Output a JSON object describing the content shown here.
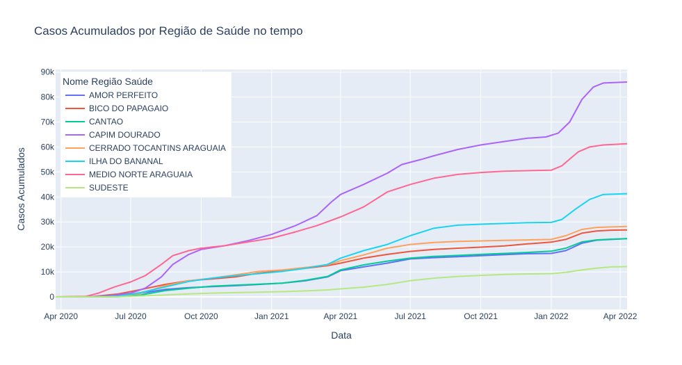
{
  "chart_data": {
    "type": "line",
    "title": "Casos Acumulados por Região de Saúde no tempo",
    "xlabel": "Data",
    "ylabel": "Casos Acumulados",
    "legend_title": "Nome Região Saúde",
    "legend_position": "top-left",
    "grid": true,
    "xlim": [
      "2020-03-25",
      "2022-04-10"
    ],
    "ylim": [
      -5000,
      91000
    ],
    "x_ticks": [
      {
        "date": "2020-04-01",
        "label": "Apr 2020"
      },
      {
        "date": "2020-07-01",
        "label": "Jul 2020"
      },
      {
        "date": "2020-10-01",
        "label": "Oct 2020"
      },
      {
        "date": "2021-01-01",
        "label": "Jan 2021"
      },
      {
        "date": "2021-04-01",
        "label": "Apr 2021"
      },
      {
        "date": "2021-07-01",
        "label": "Jul 2021"
      },
      {
        "date": "2021-10-01",
        "label": "Oct 2021"
      },
      {
        "date": "2022-01-01",
        "label": "Jan 2022"
      },
      {
        "date": "2022-04-01",
        "label": "Apr 2022"
      }
    ],
    "y_ticks": [
      {
        "value": 0,
        "label": "0"
      },
      {
        "value": 10000,
        "label": "10k"
      },
      {
        "value": 20000,
        "label": "20k"
      },
      {
        "value": 30000,
        "label": "30k"
      },
      {
        "value": 40000,
        "label": "40k"
      },
      {
        "value": 50000,
        "label": "50k"
      },
      {
        "value": 60000,
        "label": "60k"
      },
      {
        "value": 70000,
        "label": "70k"
      },
      {
        "value": 80000,
        "label": "80k"
      },
      {
        "value": 90000,
        "label": "90k"
      }
    ],
    "series": [
      {
        "name": "AMOR PERFEITO",
        "color": "#636efa",
        "points": [
          [
            "2020-03-25",
            0
          ],
          [
            "2020-05-15",
            100
          ],
          [
            "2020-06-15",
            500
          ],
          [
            "2020-07-15",
            1500
          ],
          [
            "2020-08-15",
            3000
          ],
          [
            "2020-09-15",
            3700
          ],
          [
            "2020-10-15",
            4100
          ],
          [
            "2020-11-15",
            4500
          ],
          [
            "2020-12-15",
            5000
          ],
          [
            "2021-01-15",
            5500
          ],
          [
            "2021-02-15",
            6500
          ],
          [
            "2021-03-15",
            8000
          ],
          [
            "2021-04-01",
            10500
          ],
          [
            "2021-05-01",
            12000
          ],
          [
            "2021-06-01",
            13500
          ],
          [
            "2021-07-01",
            15200
          ],
          [
            "2021-08-01",
            15700
          ],
          [
            "2021-09-01",
            16100
          ],
          [
            "2021-10-01",
            16500
          ],
          [
            "2021-11-01",
            16900
          ],
          [
            "2021-12-01",
            17300
          ],
          [
            "2022-01-01",
            17400
          ],
          [
            "2022-01-20",
            18500
          ],
          [
            "2022-02-10",
            21500
          ],
          [
            "2022-03-01",
            22700
          ],
          [
            "2022-03-20",
            23000
          ],
          [
            "2022-04-10",
            23300
          ]
        ]
      },
      {
        "name": "BICO DO PAPAGAIO",
        "color": "#ef553b",
        "points": [
          [
            "2020-03-25",
            0
          ],
          [
            "2020-05-15",
            200
          ],
          [
            "2020-06-15",
            1200
          ],
          [
            "2020-07-15",
            3000
          ],
          [
            "2020-08-15",
            5000
          ],
          [
            "2020-09-15",
            6500
          ],
          [
            "2020-10-15",
            7200
          ],
          [
            "2020-11-15",
            8000
          ],
          [
            "2020-12-15",
            9500
          ],
          [
            "2021-01-15",
            10500
          ],
          [
            "2021-02-15",
            11500
          ],
          [
            "2021-03-15",
            12500
          ],
          [
            "2021-04-01",
            13500
          ],
          [
            "2021-05-01",
            15500
          ],
          [
            "2021-06-01",
            17000
          ],
          [
            "2021-07-01",
            18200
          ],
          [
            "2021-08-01",
            19000
          ],
          [
            "2021-09-01",
            19500
          ],
          [
            "2021-10-01",
            19900
          ],
          [
            "2021-11-01",
            20400
          ],
          [
            "2021-12-01",
            21200
          ],
          [
            "2022-01-01",
            21900
          ],
          [
            "2022-01-20",
            23000
          ],
          [
            "2022-02-10",
            25500
          ],
          [
            "2022-03-01",
            26400
          ],
          [
            "2022-03-20",
            26700
          ],
          [
            "2022-04-10",
            26800
          ]
        ]
      },
      {
        "name": "CANTAO",
        "color": "#00cc96",
        "points": [
          [
            "2020-03-25",
            0
          ],
          [
            "2020-05-15",
            0
          ],
          [
            "2020-06-15",
            100
          ],
          [
            "2020-07-15",
            800
          ],
          [
            "2020-08-15",
            2500
          ],
          [
            "2020-09-15",
            3500
          ],
          [
            "2020-10-15",
            4300
          ],
          [
            "2020-11-15",
            4700
          ],
          [
            "2020-12-15",
            5100
          ],
          [
            "2021-01-15",
            5500
          ],
          [
            "2021-02-15",
            6700
          ],
          [
            "2021-03-15",
            8200
          ],
          [
            "2021-04-01",
            10800
          ],
          [
            "2021-05-01",
            12800
          ],
          [
            "2021-06-01",
            14300
          ],
          [
            "2021-07-01",
            15500
          ],
          [
            "2021-08-01",
            16200
          ],
          [
            "2021-09-01",
            16600
          ],
          [
            "2021-10-01",
            17000
          ],
          [
            "2021-11-01",
            17400
          ],
          [
            "2021-12-01",
            17800
          ],
          [
            "2022-01-01",
            18300
          ],
          [
            "2022-01-20",
            19500
          ],
          [
            "2022-02-10",
            22000
          ],
          [
            "2022-03-01",
            22800
          ],
          [
            "2022-03-20",
            23100
          ],
          [
            "2022-04-10",
            23300
          ]
        ]
      },
      {
        "name": "CAPIM DOURADO",
        "color": "#ab63fa",
        "points": [
          [
            "2020-03-25",
            0
          ],
          [
            "2020-05-01",
            0
          ],
          [
            "2020-06-01",
            400
          ],
          [
            "2020-07-01",
            1500
          ],
          [
            "2020-07-20",
            3500
          ],
          [
            "2020-08-10",
            8000
          ],
          [
            "2020-08-25",
            13000
          ],
          [
            "2020-09-15",
            17000
          ],
          [
            "2020-10-01",
            19000
          ],
          [
            "2020-11-01",
            20500
          ],
          [
            "2020-12-01",
            22500
          ],
          [
            "2021-01-01",
            25000
          ],
          [
            "2021-02-01",
            28500
          ],
          [
            "2021-03-01",
            32500
          ],
          [
            "2021-03-20",
            38000
          ],
          [
            "2021-04-01",
            41000
          ],
          [
            "2021-05-01",
            45000
          ],
          [
            "2021-06-01",
            49500
          ],
          [
            "2021-06-20",
            53000
          ],
          [
            "2021-07-15",
            55000
          ],
          [
            "2021-08-01",
            56500
          ],
          [
            "2021-09-01",
            59000
          ],
          [
            "2021-10-01",
            60800
          ],
          [
            "2021-11-01",
            62200
          ],
          [
            "2021-12-01",
            63500
          ],
          [
            "2021-12-25",
            64000
          ],
          [
            "2022-01-10",
            65500
          ],
          [
            "2022-01-25",
            70000
          ],
          [
            "2022-02-10",
            79000
          ],
          [
            "2022-02-25",
            84000
          ],
          [
            "2022-03-10",
            85600
          ],
          [
            "2022-04-10",
            86000
          ]
        ]
      },
      {
        "name": "CERRADO TOCANTINS ARAGUAIA",
        "color": "#ffa15a",
        "points": [
          [
            "2020-03-25",
            0
          ],
          [
            "2020-05-15",
            0
          ],
          [
            "2020-06-15",
            200
          ],
          [
            "2020-07-15",
            1500
          ],
          [
            "2020-08-15",
            4500
          ],
          [
            "2020-09-15",
            6500
          ],
          [
            "2020-10-15",
            7500
          ],
          [
            "2020-11-15",
            8800
          ],
          [
            "2020-12-15",
            10200
          ],
          [
            "2021-01-15",
            10800
          ],
          [
            "2021-02-15",
            11800
          ],
          [
            "2021-03-15",
            12800
          ],
          [
            "2021-04-01",
            14500
          ],
          [
            "2021-05-01",
            16800
          ],
          [
            "2021-06-01",
            19500
          ],
          [
            "2021-07-01",
            21000
          ],
          [
            "2021-08-01",
            21800
          ],
          [
            "2021-09-01",
            22200
          ],
          [
            "2021-10-01",
            22400
          ],
          [
            "2021-11-01",
            22600
          ],
          [
            "2021-12-01",
            22800
          ],
          [
            "2022-01-01",
            23000
          ],
          [
            "2022-01-20",
            24500
          ],
          [
            "2022-02-10",
            27000
          ],
          [
            "2022-03-01",
            27800
          ],
          [
            "2022-03-20",
            28000
          ],
          [
            "2022-04-10",
            28200
          ]
        ]
      },
      {
        "name": "ILHA DO BANANAL",
        "color": "#19d3f3",
        "points": [
          [
            "2020-03-25",
            0
          ],
          [
            "2020-05-15",
            0
          ],
          [
            "2020-06-15",
            300
          ],
          [
            "2020-07-15",
            1800
          ],
          [
            "2020-08-15",
            4000
          ],
          [
            "2020-09-15",
            6200
          ],
          [
            "2020-10-15",
            7500
          ],
          [
            "2020-11-15",
            8500
          ],
          [
            "2020-12-15",
            9300
          ],
          [
            "2021-01-15",
            10200
          ],
          [
            "2021-02-15",
            11500
          ],
          [
            "2021-03-15",
            13000
          ],
          [
            "2021-04-01",
            15500
          ],
          [
            "2021-05-01",
            18500
          ],
          [
            "2021-06-01",
            21000
          ],
          [
            "2021-07-01",
            24500
          ],
          [
            "2021-08-01",
            27500
          ],
          [
            "2021-09-01",
            28700
          ],
          [
            "2021-10-01",
            29100
          ],
          [
            "2021-11-01",
            29400
          ],
          [
            "2021-12-01",
            29700
          ],
          [
            "2022-01-01",
            29800
          ],
          [
            "2022-01-15",
            31000
          ],
          [
            "2022-02-01",
            35000
          ],
          [
            "2022-02-20",
            39000
          ],
          [
            "2022-03-10",
            41000
          ],
          [
            "2022-04-10",
            41300
          ]
        ]
      },
      {
        "name": "MEDIO NORTE ARAGUAIA",
        "color": "#ff6692",
        "points": [
          [
            "2020-03-25",
            0
          ],
          [
            "2020-05-01",
            0
          ],
          [
            "2020-05-20",
            1500
          ],
          [
            "2020-06-10",
            4000
          ],
          [
            "2020-07-01",
            6000
          ],
          [
            "2020-07-20",
            8500
          ],
          [
            "2020-08-10",
            13000
          ],
          [
            "2020-08-25",
            16500
          ],
          [
            "2020-09-15",
            18500
          ],
          [
            "2020-10-01",
            19500
          ],
          [
            "2020-11-01",
            20500
          ],
          [
            "2020-12-01",
            22000
          ],
          [
            "2021-01-01",
            23500
          ],
          [
            "2021-02-01",
            26000
          ],
          [
            "2021-03-01",
            28500
          ],
          [
            "2021-04-01",
            32000
          ],
          [
            "2021-05-01",
            36000
          ],
          [
            "2021-06-01",
            42000
          ],
          [
            "2021-07-01",
            45000
          ],
          [
            "2021-08-01",
            47500
          ],
          [
            "2021-09-01",
            49000
          ],
          [
            "2021-10-01",
            49800
          ],
          [
            "2021-11-01",
            50300
          ],
          [
            "2021-12-01",
            50500
          ],
          [
            "2022-01-01",
            50700
          ],
          [
            "2022-01-15",
            52500
          ],
          [
            "2022-02-05",
            58000
          ],
          [
            "2022-02-20",
            60000
          ],
          [
            "2022-03-10",
            60800
          ],
          [
            "2022-04-10",
            61300
          ]
        ]
      },
      {
        "name": "SUDESTE",
        "color": "#b6e880",
        "points": [
          [
            "2020-03-25",
            0
          ],
          [
            "2020-06-15",
            100
          ],
          [
            "2020-07-15",
            400
          ],
          [
            "2020-08-15",
            800
          ],
          [
            "2020-09-15",
            1200
          ],
          [
            "2020-10-15",
            1500
          ],
          [
            "2020-11-15",
            1700
          ],
          [
            "2020-12-15",
            1900
          ],
          [
            "2021-01-15",
            2100
          ],
          [
            "2021-02-15",
            2400
          ],
          [
            "2021-03-15",
            2800
          ],
          [
            "2021-04-01",
            3200
          ],
          [
            "2021-05-01",
            3900
          ],
          [
            "2021-06-01",
            5000
          ],
          [
            "2021-07-01",
            6500
          ],
          [
            "2021-08-01",
            7500
          ],
          [
            "2021-09-01",
            8200
          ],
          [
            "2021-10-01",
            8600
          ],
          [
            "2021-11-01",
            9000
          ],
          [
            "2021-12-01",
            9200
          ],
          [
            "2022-01-01",
            9300
          ],
          [
            "2022-01-20",
            9800
          ],
          [
            "2022-02-10",
            10800
          ],
          [
            "2022-03-01",
            11500
          ],
          [
            "2022-03-20",
            12000
          ],
          [
            "2022-04-10",
            12100
          ]
        ]
      }
    ]
  }
}
